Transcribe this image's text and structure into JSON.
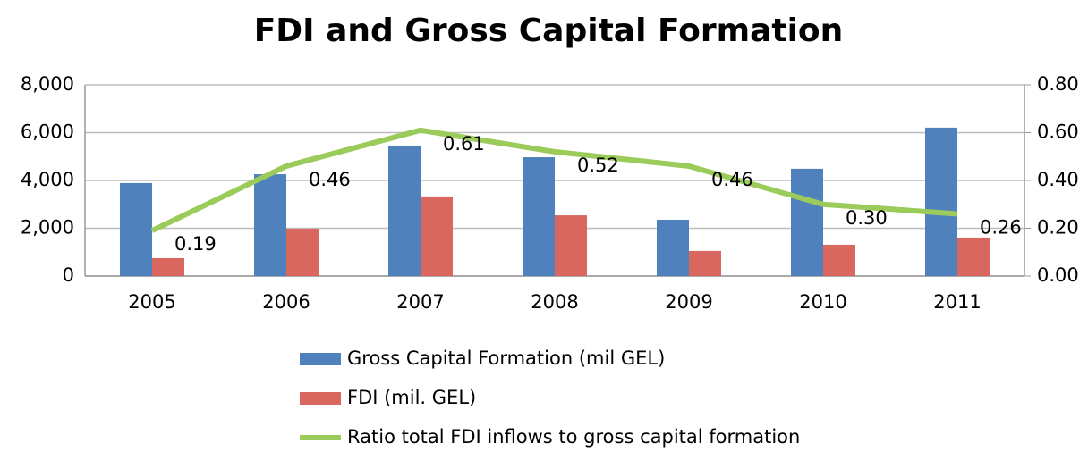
{
  "chart_data": {
    "type": "bar",
    "title": "FDI and Gross Capital Formation",
    "categories": [
      "2005",
      "2006",
      "2007",
      "2008",
      "2009",
      "2010",
      "2011"
    ],
    "series": [
      {
        "name": "Gross Capital Formation (mil GEL)",
        "color": "#4f81bd",
        "type": "bar",
        "values": [
          3890,
          4260,
          5460,
          4970,
          2355,
          4490,
          6210
        ]
      },
      {
        "name": "FDI (mil. GEL)",
        "color": "#d9675f",
        "type": "bar",
        "values": [
          750,
          1980,
          3330,
          2540,
          1050,
          1310,
          1610
        ]
      },
      {
        "name": "Ratio total FDI inflows to gross capital formation",
        "color": "#9bcb5b",
        "type": "line",
        "axis": "y2",
        "values": [
          0.19,
          0.46,
          0.61,
          0.52,
          0.46,
          0.3,
          0.26
        ],
        "value_labels": [
          "0.19",
          "0.46",
          "0.61",
          "0.52",
          "0.46",
          "0.30",
          "0.26"
        ]
      }
    ],
    "ylim": [
      0,
      8000
    ],
    "yticks": [
      0,
      {
        "value": 2000,
        "label": "2,000"
      },
      {
        "value": 4000,
        "label": "4,000"
      },
      {
        "value": 6000,
        "label": "6,000"
      },
      {
        "value": 8000,
        "label": "8,000"
      }
    ],
    "y2lim": [
      0,
      0.8
    ],
    "y2ticks": [
      {
        "value": 0,
        "label": "0.00"
      },
      {
        "value": 0.2,
        "label": "0.20"
      },
      {
        "value": 0.4,
        "label": "0.40"
      },
      {
        "value": 0.6,
        "label": "0.60"
      },
      {
        "value": 0.8,
        "label": "0.80"
      }
    ],
    "grid": true,
    "legend": "bottom"
  }
}
